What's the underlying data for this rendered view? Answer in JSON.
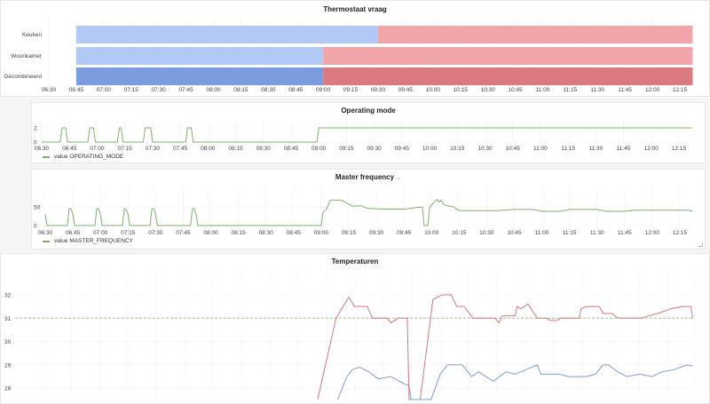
{
  "chart_data": [
    {
      "type": "timeline",
      "title": "Thermostaat vraag",
      "ticks": [
        "06:30",
        "06:45",
        "07:00",
        "07:15",
        "07:30",
        "07:45",
        "08:00",
        "08:15",
        "08:30",
        "08:45",
        "09:00",
        "09:15",
        "09:30",
        "09:45",
        "10:00",
        "10:15",
        "10:30",
        "10:45",
        "11:00",
        "11:15",
        "11:30",
        "11:45",
        "12:00",
        "12:15"
      ],
      "rows": [
        {
          "label": "Keuken",
          "segments": [
            {
              "start": "06:45",
              "end": "09:30",
              "color": "#b3c9f5"
            },
            {
              "start": "09:30",
              "end": "12:22",
              "color": "#f2a5a9"
            }
          ]
        },
        {
          "label": "Woonkamer",
          "segments": [
            {
              "start": "06:45",
              "end": "09:00",
              "color": "#b3c9f5"
            },
            {
              "start": "09:00",
              "end": "12:22",
              "color": "#f2a5a9"
            }
          ]
        },
        {
          "label": "Gecombineerd",
          "segments": [
            {
              "start": "06:45",
              "end": "09:00",
              "color": "#7b9de0"
            },
            {
              "start": "09:00",
              "end": "12:22",
              "color": "#da7a7f"
            }
          ]
        }
      ]
    },
    {
      "type": "line",
      "title": "Operating mode",
      "ticks": [
        "06:30",
        "06:45",
        "07:00",
        "07:15",
        "07:30",
        "07:45",
        "08:00",
        "08:15",
        "08:30",
        "08:45",
        "09:00",
        "09:15",
        "09:30",
        "09:45",
        "10:00",
        "10:15",
        "10:30",
        "10:45",
        "11:00",
        "11:15",
        "11:30",
        "11:45",
        "12:00",
        "12:15"
      ],
      "yticks": [
        0,
        2
      ],
      "ylim": [
        0,
        2
      ],
      "grid": true,
      "legend": "bottom-left",
      "series": [
        {
          "name": "value OPERATING_MODE",
          "color": "#7eb26d",
          "points": [
            [
              "06:30",
              0
            ],
            [
              "06:40",
              0
            ],
            [
              "06:41",
              2
            ],
            [
              "06:43",
              2
            ],
            [
              "06:44",
              0
            ],
            [
              "06:55",
              0
            ],
            [
              "06:56",
              2
            ],
            [
              "06:58",
              2
            ],
            [
              "06:59",
              0
            ],
            [
              "07:11",
              0
            ],
            [
              "07:12",
              2
            ],
            [
              "07:13",
              2
            ],
            [
              "07:14",
              0
            ],
            [
              "07:25",
              0
            ],
            [
              "07:26",
              2
            ],
            [
              "07:29",
              2
            ],
            [
              "07:30",
              0
            ],
            [
              "07:48",
              0
            ],
            [
              "07:49",
              2
            ],
            [
              "07:51",
              2
            ],
            [
              "07:52",
              0
            ],
            [
              "08:59",
              0
            ],
            [
              "09:00",
              2
            ],
            [
              "12:22",
              2
            ]
          ]
        }
      ]
    },
    {
      "type": "line",
      "title": "Master frequency",
      "title_menu_icon": "chevron-down-icon",
      "ticks": [
        "06:30",
        "06:45",
        "07:00",
        "07:15",
        "07:30",
        "07:45",
        "08:00",
        "08:15",
        "08:30",
        "08:45",
        "09:00",
        "09:15",
        "09:30",
        "09:45",
        "10:00",
        "10:15",
        "10:30",
        "10:45",
        "11:00",
        "11:15",
        "11:30",
        "11:45",
        "12:00",
        "12:15"
      ],
      "yticks": [
        0,
        50
      ],
      "ylim": [
        0,
        100
      ],
      "grid": true,
      "legend": "bottom-left",
      "series": [
        {
          "name": "value MASTER_FREQUENCY",
          "color": "#7eb26d",
          "points": [
            [
              "06:30",
              30
            ],
            [
              "06:31",
              0
            ],
            [
              "06:42",
              0
            ],
            [
              "06:43",
              45
            ],
            [
              "06:44",
              45
            ],
            [
              "06:45",
              30
            ],
            [
              "06:46",
              0
            ],
            [
              "06:57",
              0
            ],
            [
              "06:58",
              45
            ],
            [
              "06:59",
              45
            ],
            [
              "07:00",
              30
            ],
            [
              "07:01",
              0
            ],
            [
              "07:12",
              0
            ],
            [
              "07:13",
              45
            ],
            [
              "07:14",
              42
            ],
            [
              "07:15",
              30
            ],
            [
              "07:16",
              0
            ],
            [
              "07:27",
              0
            ],
            [
              "07:28",
              45
            ],
            [
              "07:29",
              45
            ],
            [
              "07:30",
              30
            ],
            [
              "07:31",
              0
            ],
            [
              "07:49",
              0
            ],
            [
              "07:50",
              45
            ],
            [
              "07:51",
              45
            ],
            [
              "07:52",
              30
            ],
            [
              "07:53",
              0
            ],
            [
              "09:00",
              0
            ],
            [
              "09:01",
              35
            ],
            [
              "09:03",
              45
            ],
            [
              "09:05",
              68
            ],
            [
              "09:11",
              68
            ],
            [
              "09:14",
              60
            ],
            [
              "09:17",
              52
            ],
            [
              "09:22",
              53
            ],
            [
              "09:25",
              46
            ],
            [
              "09:35",
              44
            ],
            [
              "09:45",
              44
            ],
            [
              "09:52",
              48
            ],
            [
              "09:55",
              50
            ],
            [
              "09:56",
              0
            ],
            [
              "09:58",
              0
            ],
            [
              "09:59",
              50
            ],
            [
              "10:02",
              65
            ],
            [
              "10:03",
              70
            ],
            [
              "10:04",
              63
            ],
            [
              "10:05",
              68
            ],
            [
              "10:07",
              55
            ],
            [
              "10:12",
              50
            ],
            [
              "10:15",
              40
            ],
            [
              "10:35",
              40
            ],
            [
              "10:45",
              43
            ],
            [
              "10:55",
              43
            ],
            [
              "11:00",
              38
            ],
            [
              "11:10",
              38
            ],
            [
              "11:15",
              43
            ],
            [
              "11:30",
              43
            ],
            [
              "11:35",
              38
            ],
            [
              "11:45",
              38
            ],
            [
              "11:50",
              41
            ],
            [
              "12:20",
              41
            ],
            [
              "12:22",
              38
            ]
          ]
        }
      ]
    },
    {
      "type": "line",
      "title": "Temperaturen",
      "yticks": [
        28,
        29,
        30,
        31,
        32
      ],
      "ylim": [
        27.5,
        33
      ],
      "grid": true,
      "threshold": {
        "value": 31,
        "color": "#9bc48a",
        "style": "dashed"
      },
      "series": [
        {
          "color": "#d9777c",
          "points": [
            [
              "08:57",
              27
            ],
            [
              "09:07",
              31
            ],
            [
              "09:14",
              31.9
            ],
            [
              "09:17",
              31.5
            ],
            [
              "09:24",
              31.5
            ],
            [
              "09:27",
              31
            ],
            [
              "09:35",
              31
            ],
            [
              "09:37",
              30.8
            ],
            [
              "09:41",
              31
            ],
            [
              "09:46",
              31
            ],
            [
              "09:47",
              27
            ],
            [
              "09:53",
              27
            ],
            [
              "10:00",
              31.8
            ],
            [
              "10:05",
              32
            ],
            [
              "10:10",
              32
            ],
            [
              "10:13",
              31.5
            ],
            [
              "10:17",
              31.5
            ],
            [
              "10:22",
              31
            ],
            [
              "10:34",
              31
            ],
            [
              "10:36",
              30.8
            ],
            [
              "10:38",
              31.1
            ],
            [
              "10:45",
              31.1
            ],
            [
              "10:46",
              31.5
            ],
            [
              "10:48",
              31.4
            ],
            [
              "10:52",
              31.6
            ],
            [
              "10:57",
              31
            ],
            [
              "11:02",
              31
            ],
            [
              "11:04",
              30.9
            ],
            [
              "11:08",
              30.9
            ],
            [
              "11:10",
              31
            ],
            [
              "11:20",
              31
            ],
            [
              "11:21",
              31.4
            ],
            [
              "11:24",
              31.5
            ],
            [
              "11:31",
              31.5
            ],
            [
              "11:33",
              31.2
            ],
            [
              "11:38",
              31.2
            ],
            [
              "11:41",
              31
            ],
            [
              "11:54",
              31
            ],
            [
              "11:58",
              31.1
            ],
            [
              "12:03",
              31.2
            ],
            [
              "12:10",
              31.4
            ],
            [
              "12:17",
              31.5
            ],
            [
              "12:21",
              31.5
            ],
            [
              "12:22",
              31
            ]
          ]
        },
        {
          "color": "#7a9fd6",
          "points": [
            [
              "09:08",
              27.3
            ],
            [
              "09:13",
              28.5
            ],
            [
              "09:16",
              28.8
            ],
            [
              "09:20",
              28.9
            ],
            [
              "09:25",
              28.7
            ],
            [
              "09:30",
              28.4
            ],
            [
              "09:37",
              28.5
            ],
            [
              "09:44",
              28.2
            ],
            [
              "09:47",
              28.1
            ],
            [
              "09:48",
              27
            ],
            [
              "09:59",
              27
            ],
            [
              "10:04",
              28.6
            ],
            [
              "10:08",
              29
            ],
            [
              "10:16",
              29
            ],
            [
              "10:21",
              28.5
            ],
            [
              "10:25",
              28.7
            ],
            [
              "10:33",
              28.3
            ],
            [
              "10:40",
              28.7
            ],
            [
              "10:45",
              28.6
            ],
            [
              "10:57",
              29
            ],
            [
              "10:59",
              28.6
            ],
            [
              "11:09",
              28.6
            ],
            [
              "11:14",
              28.5
            ],
            [
              "11:24",
              28.5
            ],
            [
              "11:29",
              28.6
            ],
            [
              "11:33",
              29
            ],
            [
              "11:36",
              29
            ],
            [
              "11:41",
              28.7
            ],
            [
              "11:46",
              28.5
            ],
            [
              "11:53",
              28.6
            ],
            [
              "12:00",
              28.5
            ],
            [
              "12:05",
              28.7
            ],
            [
              "12:12",
              28.8
            ],
            [
              "12:19",
              29
            ],
            [
              "12:22",
              28.95
            ]
          ]
        }
      ]
    }
  ]
}
